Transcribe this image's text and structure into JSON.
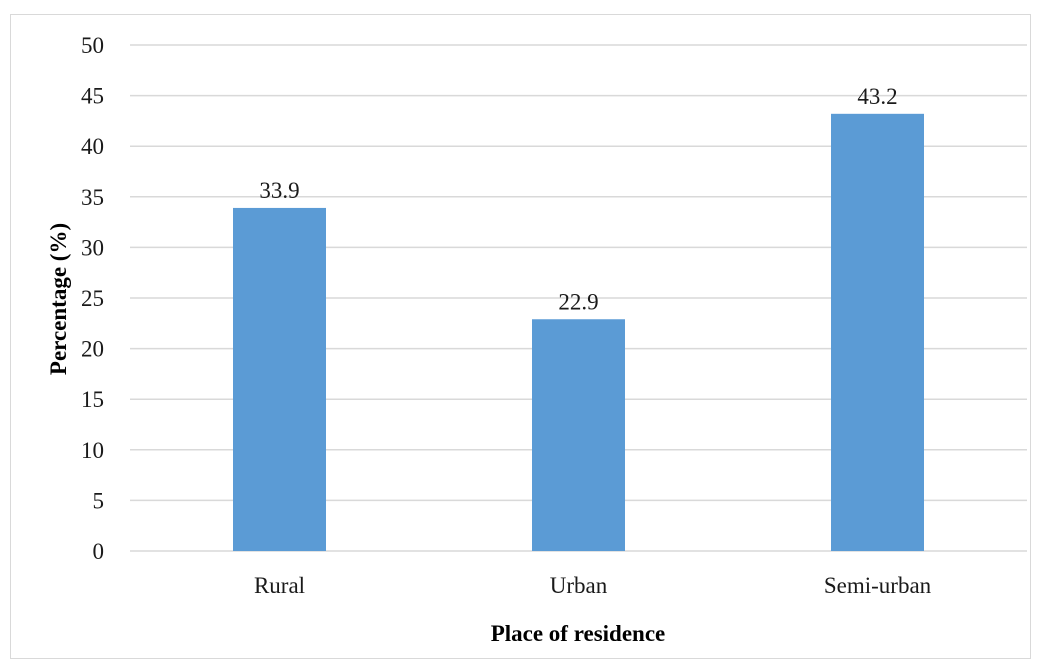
{
  "chart_data": {
    "type": "bar",
    "categories": [
      "Rural",
      "Urban",
      "Semi-urban"
    ],
    "values": [
      33.9,
      22.9,
      43.2
    ],
    "data_labels": [
      "33.9",
      "22.9",
      "43.2"
    ],
    "title": "",
    "xlabel": "Place of residence",
    "ylabel": "Percentage (%)",
    "ylim": [
      0,
      50
    ],
    "yticks": [
      0,
      5,
      10,
      15,
      20,
      25,
      30,
      35,
      40,
      45,
      50
    ],
    "grid": true,
    "legend": "none",
    "bar_color": "#5b9bd5",
    "grid_color": "#d9d9d9"
  }
}
